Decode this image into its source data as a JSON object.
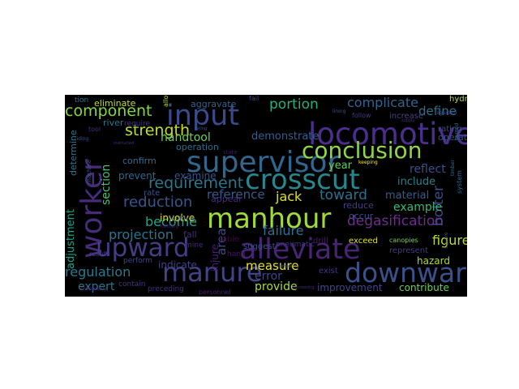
{
  "wordcloud": {
    "background": "#000000",
    "words": [
      {
        "text": "locomotive",
        "color": "#4a2f8e"
      },
      {
        "text": "supervisor",
        "color": "#31668e"
      },
      {
        "text": "input",
        "color": "#3a4a8c"
      },
      {
        "text": "conclusion",
        "color": "#8fd744"
      },
      {
        "text": "crosscut",
        "color": "#25888e"
      },
      {
        "text": "manhour",
        "color": "#a2da37"
      },
      {
        "text": "worker",
        "color": "#472c7a"
      },
      {
        "text": "upward",
        "color": "#433d84"
      },
      {
        "text": "alleviate",
        "color": "#482475"
      },
      {
        "text": "manure",
        "color": "#414487"
      },
      {
        "text": "downward",
        "color": "#3b518b"
      },
      {
        "text": "component",
        "color": "#86d549"
      },
      {
        "text": "strength",
        "color": "#c2df23"
      },
      {
        "text": "portion",
        "color": "#29af7f"
      },
      {
        "text": "complicate",
        "color": "#32648e"
      },
      {
        "text": "define",
        "color": "#2c728e"
      },
      {
        "text": "requirement",
        "color": "#2a788e"
      },
      {
        "text": "reduction",
        "color": "#39568c"
      },
      {
        "text": "become",
        "color": "#20a386"
      },
      {
        "text": "projection",
        "color": "#2c738e"
      },
      {
        "text": "reference",
        "color": "#375b8d"
      },
      {
        "text": "toward",
        "color": "#2e6f8e"
      },
      {
        "text": "jack",
        "color": "#dde318"
      },
      {
        "text": "failure",
        "color": "#2d708e"
      },
      {
        "text": "degasification",
        "color": "#6b2e8a"
      },
      {
        "text": "bolter",
        "color": "#3e4a89"
      },
      {
        "text": "example",
        "color": "#37b878"
      },
      {
        "text": "figure",
        "color": "#b5de2b"
      },
      {
        "text": "regulation",
        "color": "#297b8e"
      },
      {
        "text": "expert",
        "color": "#2a768e"
      },
      {
        "text": "measure",
        "color": "#eae51a"
      },
      {
        "text": "error",
        "color": "#3f4889"
      },
      {
        "text": "provide",
        "color": "#a8db34"
      },
      {
        "text": "improvement",
        "color": "#404688"
      },
      {
        "text": "contribute",
        "color": "#6ece58"
      },
      {
        "text": "hazard",
        "color": "#addc30"
      },
      {
        "text": "adjustment",
        "color": "#1fa088"
      },
      {
        "text": "handtool",
        "color": "#6ccd5a"
      },
      {
        "text": "demonstrate",
        "color": "#355f8d"
      },
      {
        "text": "reflect",
        "color": "#3c508b"
      },
      {
        "text": "include",
        "color": "#26828e"
      },
      {
        "text": "material",
        "color": "#365c8d"
      },
      {
        "text": "section",
        "color": "#48c16e"
      },
      {
        "text": "area",
        "color": "#3e4989"
      },
      {
        "text": "injure",
        "color": "#481f70"
      },
      {
        "text": "indicate",
        "color": "#424086"
      },
      {
        "text": "involve",
        "color": "#dde318"
      },
      {
        "text": "year",
        "color": "#63cb5f"
      },
      {
        "text": "aggravate",
        "color": "#34608d"
      },
      {
        "text": "eliminate",
        "color": "#c0df25"
      },
      {
        "text": "prevent",
        "color": "#31688e"
      },
      {
        "text": "confirm",
        "color": "#2f6c8e"
      },
      {
        "text": "examine",
        "color": "#3a538b"
      },
      {
        "text": "operation",
        "color": "#2d708e"
      },
      {
        "text": "appear",
        "color": "#472d7b"
      },
      {
        "text": "occur",
        "color": "#3c4f8a"
      },
      {
        "text": "reduce",
        "color": "#433e85"
      },
      {
        "text": "suggest",
        "color": "#3b528b"
      },
      {
        "text": "exceed",
        "color": "#d8e219"
      },
      {
        "text": "drill",
        "color": "#481b6d"
      },
      {
        "text": "operate",
        "color": "#3e4c8a"
      },
      {
        "text": "rating",
        "color": "#3e4a89"
      },
      {
        "text": "increase",
        "color": "#414487"
      },
      {
        "text": "hydraulic",
        "color": "#b8de29"
      },
      {
        "text": "represent",
        "color": "#453882"
      },
      {
        "text": "exist",
        "color": "#46337f"
      },
      {
        "text": "require",
        "color": "#443a83"
      },
      {
        "text": "river",
        "color": "#2a768e"
      },
      {
        "text": "determine",
        "color": "#2b748e"
      },
      {
        "text": "rate",
        "color": "#3b528b"
      },
      {
        "text": "fall",
        "color": "#472c7a"
      },
      {
        "text": "mine",
        "color": "#482878"
      },
      {
        "text": "table",
        "color": "#440154"
      },
      {
        "text": "hand",
        "color": "#481467"
      },
      {
        "text": "contain",
        "color": "#453781"
      },
      {
        "text": "perform",
        "color": "#3f4788"
      },
      {
        "text": "preceding",
        "color": "#46327e"
      },
      {
        "text": "conform",
        "color": "#3b528b"
      },
      {
        "text": "result",
        "color": "#424086"
      },
      {
        "text": "personnel",
        "color": "#482173"
      },
      {
        "text": "pneumatic",
        "color": "#46307e"
      },
      {
        "text": "canopies",
        "color": "#7ad151"
      },
      {
        "text": "machine",
        "color": "#38598c"
      },
      {
        "text": "follow",
        "color": "#453882"
      },
      {
        "text": "tool",
        "color": "#472d7b"
      },
      {
        "text": "tion",
        "color": "#2c728e"
      },
      {
        "text": "fail",
        "color": "#3e4989"
      },
      {
        "text": "allow",
        "color": "#c5e021"
      },
      {
        "text": "keeping",
        "color": "#fde725"
      },
      {
        "text": "comparing",
        "color": "#3b528b"
      },
      {
        "text": "system",
        "color": "#31688e"
      },
      {
        "text": "lining",
        "color": "#3b528b"
      },
      {
        "text": "state",
        "color": "#481467"
      },
      {
        "text": "namely",
        "color": "#482475"
      },
      {
        "text": "marginally",
        "color": "#46307e"
      },
      {
        "text": "regarded",
        "color": "#3e4989"
      },
      {
        "text": "burned",
        "color": "#2c728e"
      },
      {
        "text": "riding",
        "color": "#3b528b"
      },
      {
        "text": "instructed",
        "color": "#472d7b"
      },
      {
        "text": "decreasing",
        "color": "#482878"
      },
      {
        "text": "square",
        "color": "#3e4989"
      },
      {
        "text": "timber",
        "color": "#31688e"
      },
      {
        "text": "supply",
        "color": "#46307e"
      },
      {
        "text": "listing",
        "color": "#3b528b"
      }
    ]
  }
}
